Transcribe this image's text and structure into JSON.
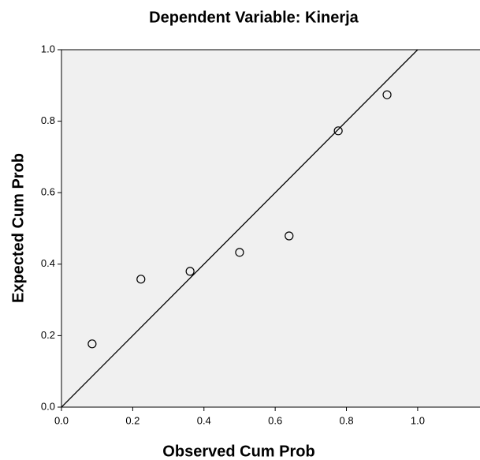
{
  "chart_data": {
    "type": "scatter",
    "title": "Dependent Variable: Kinerja",
    "x_label": "Observed Cum Prob",
    "y_label": "Expected Cum Prob",
    "x": [
      0.086,
      0.223,
      0.361,
      0.5,
      0.639,
      0.777,
      0.914
    ],
    "values": [
      0.177,
      0.358,
      0.38,
      0.433,
      0.479,
      0.773,
      0.874
    ],
    "xlim": [
      0,
      1.175
    ],
    "ylim": [
      0,
      1
    ],
    "xticks": [
      {
        "value": 0,
        "label": "0.0"
      },
      0.2,
      0.4,
      0.6,
      0.8,
      {
        "value": 1,
        "label": "1.0"
      }
    ],
    "yticks": [
      {
        "value": 0,
        "label": "0.0"
      },
      0.2,
      0.4,
      0.6,
      0.8,
      {
        "value": 1,
        "label": "1.0"
      }
    ],
    "diagonal": true,
    "background": "#f0f0f0",
    "color": "#000000"
  }
}
